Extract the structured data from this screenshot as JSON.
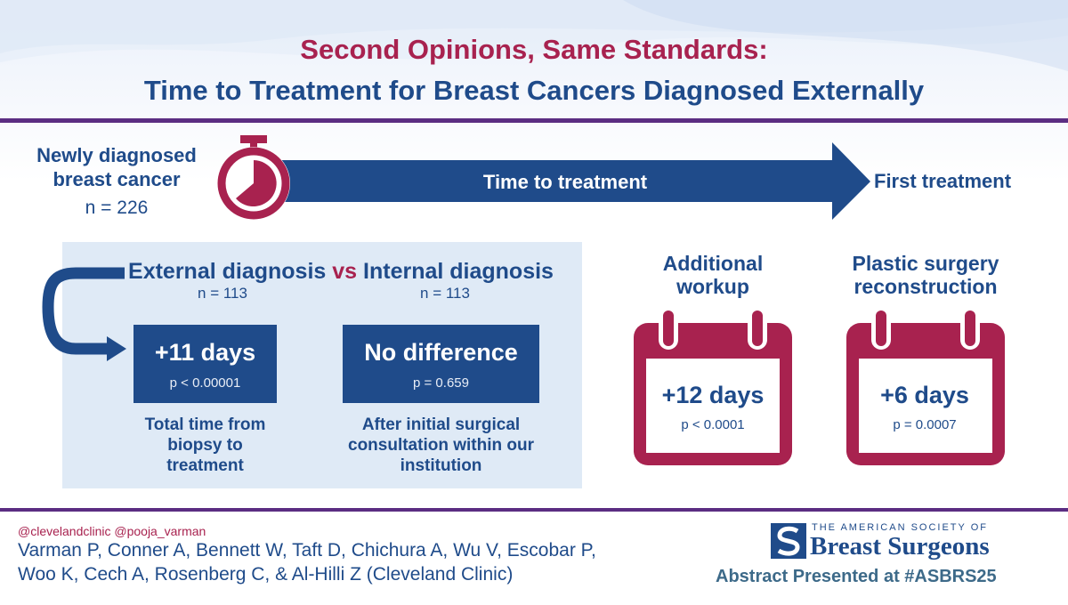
{
  "header": {
    "title_line1": "Second Opinions, Same Standards:",
    "title_line2": "Time to Treatment for Breast Cancers Diagnosed Externally"
  },
  "flow": {
    "start_label": "Newly diagnosed breast cancer",
    "start_n": "n = 226",
    "arrow_label": "Time to treatment",
    "end_label": "First treatment"
  },
  "comparison": {
    "external_label": "External diagnosis",
    "vs_label": "vs",
    "internal_label": "Internal diagnosis",
    "external_n": "n = 113",
    "internal_n": "n = 113",
    "external_result": "+11 days",
    "external_p": "p < 0.00001",
    "internal_result": "No difference",
    "internal_p": "p = 0.659",
    "external_caption": "Total time from biopsy to treatment",
    "internal_caption": "After initial surgical consultation within our institution"
  },
  "calendars": [
    {
      "heading": "Additional workup",
      "result": "+12 days",
      "p": "p < 0.0001"
    },
    {
      "heading": "Plastic surgery reconstruction",
      "result": "+6 days",
      "p": "p = 0.0007"
    }
  ],
  "footer": {
    "handles": "@clevelandclinic @pooja_varman",
    "authors_line1": "Varman P, Conner A, Bennett W, Taft D, Chichura A, Wu V, Escobar P,",
    "authors_line2": "Woo K, Cech A, Rosenberg C, & Al-Hilli Z (Cleveland Clinic)",
    "society_small": "THE AMERICAN SOCIETY OF",
    "society_name": "Breast Surgeons",
    "abstract_note": "Abstract Presented at #ASBRS25"
  },
  "colors": {
    "navy": "#1f4b8a",
    "magenta": "#a8224f",
    "panel": "#dfeaf6",
    "purple_rule": "#5b2d82"
  }
}
